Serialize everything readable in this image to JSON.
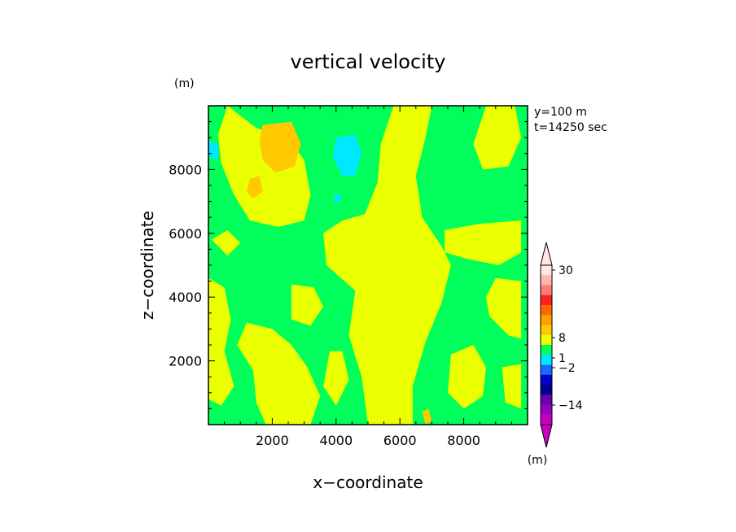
{
  "chart_data": {
    "type": "heatmap",
    "title": "vertical velocity",
    "xlabel": "x−coordinate",
    "ylabel": "z−coordinate",
    "x_unit": "(m)",
    "y_unit": "(m)",
    "annotations": [
      "y=100 m",
      "t=14250 sec"
    ],
    "xlim": [
      0,
      10000
    ],
    "ylim": [
      0,
      10000
    ],
    "x_ticks": [
      2000,
      4000,
      6000,
      8000
    ],
    "y_ticks": [
      2000,
      4000,
      6000,
      8000
    ],
    "x_tick_labels": [
      "2000",
      "4000",
      "6000",
      "8000"
    ],
    "y_tick_labels": [
      "2000",
      "4000",
      "6000",
      "8000"
    ],
    "palette": {
      "green": "#00ff5a",
      "yellow": "#eaff00",
      "orange": "#ffc800",
      "cyan": "#00e8ff"
    },
    "regions": [
      {
        "color": "yellow",
        "poly": [
          [
            600,
            10000
          ],
          [
            1500,
            9300
          ],
          [
            2500,
            9000
          ],
          [
            3000,
            8300
          ],
          [
            3200,
            7200
          ],
          [
            3000,
            6400
          ],
          [
            2200,
            6200
          ],
          [
            1300,
            6400
          ],
          [
            800,
            7200
          ],
          [
            400,
            8200
          ],
          [
            300,
            9100
          ]
        ]
      },
      {
        "color": "yellow",
        "poly": [
          [
            5800,
            10000
          ],
          [
            7000,
            10000
          ],
          [
            6800,
            9000
          ],
          [
            6500,
            7800
          ],
          [
            6700,
            6500
          ],
          [
            7300,
            5600
          ],
          [
            7600,
            5000
          ],
          [
            7300,
            3800
          ],
          [
            6800,
            2600
          ],
          [
            6400,
            1200
          ],
          [
            6400,
            0
          ],
          [
            5000,
            0
          ],
          [
            4800,
            1500
          ],
          [
            4400,
            2800
          ],
          [
            4600,
            4200
          ],
          [
            3700,
            5000
          ],
          [
            3600,
            6000
          ],
          [
            4200,
            6400
          ],
          [
            4900,
            6600
          ],
          [
            5300,
            7600
          ],
          [
            5400,
            8800
          ]
        ]
      },
      {
        "color": "yellow",
        "poly": [
          [
            8700,
            10000
          ],
          [
            9600,
            10000
          ],
          [
            9800,
            9000
          ],
          [
            9400,
            8100
          ],
          [
            8600,
            8000
          ],
          [
            8300,
            8800
          ]
        ]
      },
      {
        "color": "yellow",
        "poly": [
          [
            7400,
            6100
          ],
          [
            8500,
            6300
          ],
          [
            9800,
            6400
          ],
          [
            9800,
            5400
          ],
          [
            9100,
            5000
          ],
          [
            8100,
            5200
          ],
          [
            7400,
            5400
          ]
        ]
      },
      {
        "color": "yellow",
        "poly": [
          [
            9000,
            4600
          ],
          [
            9800,
            4500
          ],
          [
            9800,
            2700
          ],
          [
            9400,
            2800
          ],
          [
            8800,
            3400
          ],
          [
            8700,
            4000
          ]
        ]
      },
      {
        "color": "yellow",
        "poly": [
          [
            0,
            4600
          ],
          [
            500,
            4300
          ],
          [
            700,
            3300
          ],
          [
            500,
            2300
          ],
          [
            800,
            1200
          ],
          [
            400,
            600
          ],
          [
            0,
            800
          ]
        ]
      },
      {
        "color": "yellow",
        "poly": [
          [
            1200,
            3200
          ],
          [
            2000,
            3000
          ],
          [
            2600,
            2500
          ],
          [
            3100,
            1800
          ],
          [
            3500,
            900
          ],
          [
            3200,
            0
          ],
          [
            1800,
            0
          ],
          [
            1500,
            700
          ],
          [
            1400,
            1700
          ],
          [
            900,
            2500
          ]
        ]
      },
      {
        "color": "yellow",
        "poly": [
          [
            3800,
            2300
          ],
          [
            4200,
            2300
          ],
          [
            4400,
            1400
          ],
          [
            4000,
            600
          ],
          [
            3600,
            1200
          ]
        ]
      },
      {
        "color": "yellow",
        "poly": [
          [
            7600,
            2200
          ],
          [
            8300,
            2500
          ],
          [
            8700,
            1800
          ],
          [
            8600,
            900
          ],
          [
            8000,
            500
          ],
          [
            7500,
            1000
          ]
        ]
      },
      {
        "color": "yellow",
        "poly": [
          [
            2600,
            4400
          ],
          [
            3300,
            4300
          ],
          [
            3600,
            3700
          ],
          [
            3200,
            3100
          ],
          [
            2600,
            3300
          ]
        ]
      },
      {
        "color": "yellow",
        "poly": [
          [
            100,
            5800
          ],
          [
            600,
            6100
          ],
          [
            1000,
            5700
          ],
          [
            600,
            5300
          ]
        ]
      },
      {
        "color": "yellow",
        "poly": [
          [
            9200,
            1800
          ],
          [
            9800,
            1900
          ],
          [
            9800,
            500
          ],
          [
            9300,
            700
          ]
        ]
      },
      {
        "color": "orange",
        "poly": [
          [
            1700,
            9400
          ],
          [
            2600,
            9500
          ],
          [
            2900,
            8800
          ],
          [
            2700,
            8100
          ],
          [
            2100,
            7900
          ],
          [
            1700,
            8300
          ],
          [
            1600,
            8900
          ]
        ]
      },
      {
        "color": "orange",
        "poly": [
          [
            1300,
            7700
          ],
          [
            1600,
            7800
          ],
          [
            1700,
            7300
          ],
          [
            1400,
            7100
          ],
          [
            1200,
            7300
          ]
        ]
      },
      {
        "color": "orange",
        "poly": [
          [
            6700,
            400
          ],
          [
            6900,
            500
          ],
          [
            7000,
            100
          ],
          [
            6800,
            0
          ]
        ]
      },
      {
        "color": "cyan",
        "poly": [
          [
            4000,
            9000
          ],
          [
            4600,
            9100
          ],
          [
            4800,
            8500
          ],
          [
            4600,
            7800
          ],
          [
            4200,
            7800
          ],
          [
            3900,
            8400
          ]
        ]
      },
      {
        "color": "cyan",
        "poly": [
          [
            0,
            8900
          ],
          [
            300,
            8800
          ],
          [
            300,
            8300
          ],
          [
            0,
            8400
          ]
        ]
      },
      {
        "color": "cyan",
        "poly": [
          [
            3950,
            7200
          ],
          [
            4150,
            7250
          ],
          [
            4150,
            7000
          ],
          [
            3950,
            6950
          ]
        ]
      }
    ],
    "colorbar": {
      "unit": "(m)",
      "tick_labels": [
        "30",
        "8",
        "1",
        "−2",
        "−14"
      ],
      "segments": [
        {
          "color": "#ffe8e0"
        },
        {
          "color": "#ffb8b0"
        },
        {
          "color": "#ff7a7a"
        },
        {
          "color": "#ff2020"
        },
        {
          "color": "#ff6a00"
        },
        {
          "color": "#ffa000"
        },
        {
          "color": "#ffc800"
        },
        {
          "color": "#eaff00"
        },
        {
          "color": "#00ff5a"
        },
        {
          "color": "#00e8ff"
        },
        {
          "color": "#1a6aff"
        },
        {
          "color": "#0000cc"
        },
        {
          "color": "#000090"
        },
        {
          "color": "#6a00b0"
        },
        {
          "color": "#9a00c0"
        },
        {
          "color": "#c800c0"
        }
      ]
    }
  }
}
